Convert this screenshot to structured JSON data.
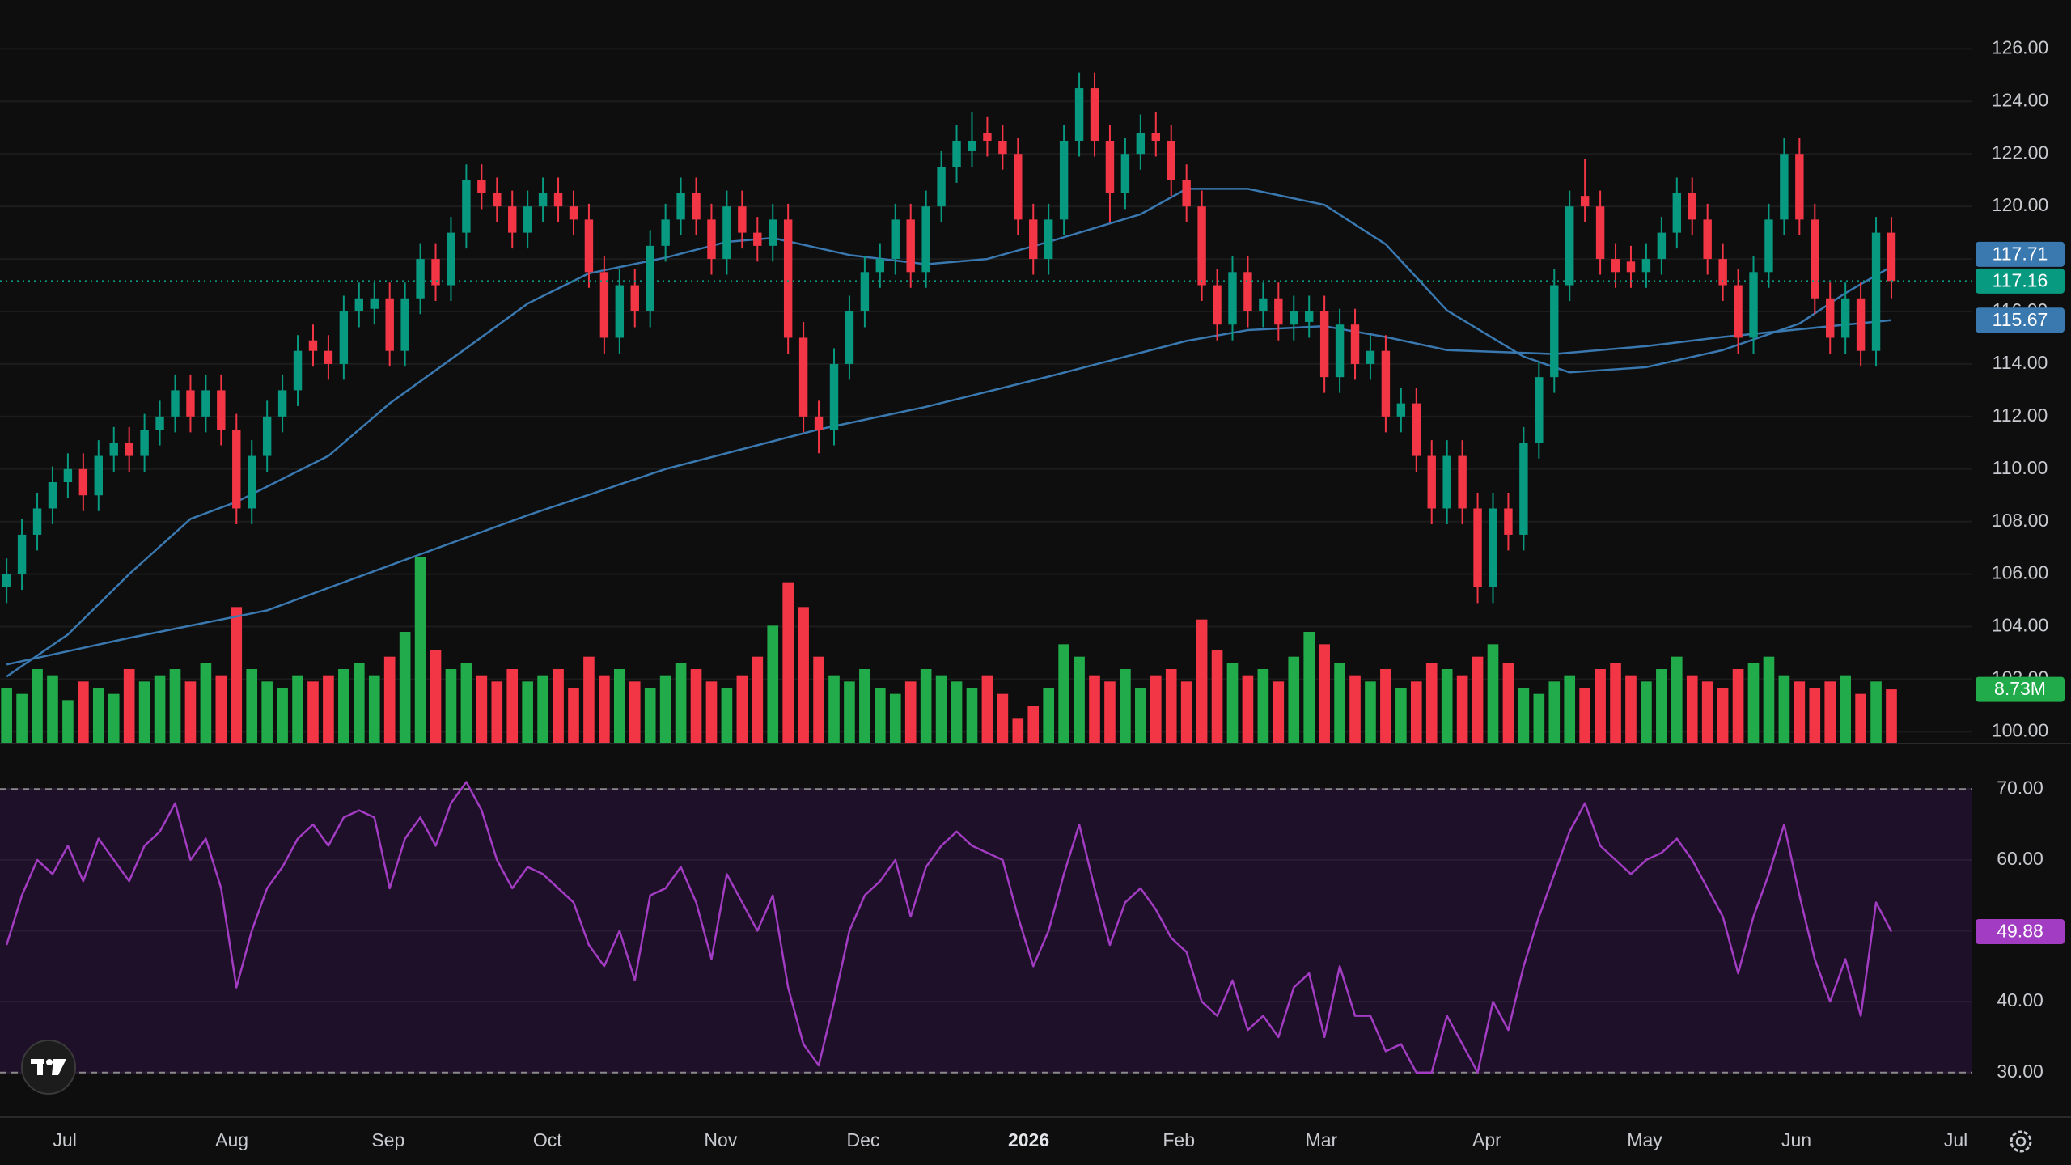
{
  "chart_data": [
    {
      "type": "candlestick",
      "open": [
        105.5,
        106,
        107.5,
        108.5,
        109.5,
        110,
        109,
        110.5,
        111,
        110.5,
        111.5,
        112,
        113,
        112,
        113,
        111.5,
        108.5,
        110.5,
        112,
        113,
        114.9,
        114.5,
        114,
        116,
        116.1,
        116.5,
        114.5,
        116.5,
        118,
        117,
        119,
        121,
        120.5,
        120,
        119,
        120,
        120.5,
        120,
        119.5,
        117.5,
        115,
        117,
        116,
        118.5,
        119.5,
        120.5,
        119.5,
        118,
        120,
        119,
        118.5,
        119.5,
        115,
        112,
        111.5,
        114,
        116,
        117.5,
        118,
        119.5,
        117.5,
        120,
        121.5,
        122.1,
        122.8,
        122.5,
        122,
        119.5,
        118,
        119.5,
        122.5,
        124.5,
        122.5,
        120.5,
        122,
        122.8,
        122.5,
        121,
        120,
        117,
        115.5,
        117.5,
        116,
        116.5,
        115.5,
        115.6,
        116,
        113.5,
        115.5,
        114,
        114.5,
        112,
        112.5,
        110.5,
        108.5,
        110.5,
        108.5,
        105.5,
        108.5,
        107.5,
        111,
        113.5,
        117,
        120.4,
        120,
        118,
        117.9,
        117.5,
        118,
        119,
        120.5,
        119.5,
        118,
        117,
        115,
        117.5,
        119.5,
        122,
        119.5,
        116.5,
        115,
        116.5,
        114.5,
        119
      ],
      "high": [
        106.6,
        108.1,
        109.1,
        110.1,
        110.6,
        110.6,
        111.1,
        111.6,
        111.6,
        112.1,
        112.6,
        113.6,
        113.6,
        113.6,
        113.6,
        112.1,
        111.1,
        112.6,
        113.6,
        115.1,
        115.5,
        115.1,
        116.6,
        117.1,
        117.1,
        117.1,
        117.1,
        118.6,
        118.6,
        119.6,
        121.6,
        121.6,
        121.1,
        120.6,
        120.6,
        121.1,
        121.1,
        120.6,
        120.1,
        118.1,
        117.6,
        117.6,
        119.1,
        120.1,
        121.1,
        121.1,
        120.1,
        120.6,
        120.6,
        119.6,
        120.1,
        120.1,
        115.6,
        112.6,
        114.6,
        116.6,
        118.1,
        118.6,
        120.1,
        120.1,
        120.6,
        122.1,
        123.1,
        123.6,
        123.4,
        123.1,
        122.6,
        120.1,
        120.1,
        123.1,
        125.1,
        125.1,
        123.1,
        122.6,
        123.5,
        123.6,
        123.1,
        121.6,
        120.6,
        117.6,
        118.1,
        118.1,
        117.1,
        117.1,
        116.6,
        116.6,
        116.6,
        116.1,
        116.1,
        115.1,
        115.1,
        113.1,
        113.1,
        111.1,
        111.1,
        111.1,
        109.1,
        109.1,
        109.1,
        111.6,
        114.1,
        117.6,
        120.6,
        121.8,
        120.6,
        118.6,
        118.5,
        118.6,
        119.6,
        121.1,
        121.1,
        120.1,
        118.6,
        117.6,
        118.1,
        120.1,
        122.6,
        122.6,
        120.1,
        117.1,
        117.1,
        117.1,
        119.6,
        119.6
      ],
      "low": [
        104.9,
        105.4,
        106.9,
        107.9,
        108.9,
        108.4,
        108.4,
        109.9,
        109.9,
        109.9,
        110.9,
        111.4,
        111.4,
        111.4,
        110.9,
        107.9,
        107.9,
        109.9,
        111.4,
        112.4,
        113.9,
        113.4,
        113.4,
        115.4,
        115.5,
        113.9,
        113.9,
        115.9,
        116.4,
        116.4,
        118.4,
        119.9,
        119.4,
        118.4,
        118.4,
        119.4,
        119.4,
        118.9,
        116.9,
        114.4,
        114.4,
        115.4,
        115.4,
        117.9,
        118.9,
        118.9,
        117.4,
        117.4,
        118.4,
        117.9,
        117.9,
        114.4,
        111.4,
        110.6,
        110.9,
        113.4,
        115.4,
        116.9,
        117.4,
        116.9,
        116.9,
        119.4,
        120.9,
        121.5,
        121.9,
        121.4,
        118.9,
        117.4,
        117.4,
        118.9,
        121.9,
        121.9,
        119.4,
        119.9,
        121.4,
        121.9,
        120.4,
        119.4,
        116.4,
        114.9,
        114.9,
        115.4,
        115.4,
        114.9,
        114.9,
        115.0,
        112.9,
        112.9,
        113.4,
        113.4,
        111.4,
        111.4,
        109.9,
        107.9,
        107.9,
        107.9,
        104.9,
        104.9,
        106.9,
        106.9,
        110.4,
        112.9,
        116.4,
        119.4,
        117.4,
        116.9,
        116.9,
        116.9,
        117.4,
        118.4,
        118.9,
        117.4,
        116.4,
        114.4,
        114.4,
        116.9,
        118.9,
        118.9,
        115.9,
        114.4,
        114.4,
        113.9,
        113.9,
        116.5
      ],
      "close": [
        106,
        107.5,
        108.5,
        109.5,
        110,
        109,
        110.5,
        111,
        110.5,
        111.5,
        112,
        113,
        112,
        113,
        111.5,
        108.5,
        110.5,
        112,
        113,
        114.5,
        114.5,
        114,
        116,
        116.5,
        116.5,
        114.5,
        116.5,
        118,
        117,
        119,
        121,
        120.5,
        120,
        119,
        120,
        120.5,
        120,
        119.5,
        117.5,
        115,
        117,
        116,
        118.5,
        119.5,
        120.5,
        119.5,
        118,
        120,
        119,
        118.5,
        119.5,
        115,
        112,
        111.5,
        114,
        116,
        117.5,
        118,
        119.5,
        117.5,
        120,
        121.5,
        122.5,
        122.5,
        122.5,
        122,
        119.5,
        118,
        119.5,
        122.5,
        124.5,
        122.5,
        120.5,
        122,
        122.8,
        122.5,
        121,
        120,
        117,
        115.5,
        117.5,
        116,
        116.5,
        115.5,
        116,
        116,
        113.5,
        115.5,
        114,
        114.5,
        112,
        112.5,
        110.5,
        108.5,
        110.5,
        108.5,
        105.5,
        108.5,
        107.5,
        111,
        113.5,
        117,
        120,
        120,
        118,
        117.5,
        117.5,
        118,
        119,
        120.5,
        119.5,
        118,
        117,
        115,
        117.5,
        119.5,
        122,
        119.5,
        116.5,
        115,
        116.5,
        114.5,
        119,
        117.16
      ],
      "close_label": "117.16",
      "up_color": "#089981",
      "down_color": "#f23645",
      "volume": {
        "values": [
          9,
          8,
          12,
          11,
          7,
          10,
          9,
          8,
          12,
          10,
          11,
          12,
          10,
          13,
          11,
          22,
          12,
          10,
          9,
          11,
          10,
          11,
          12,
          13,
          11,
          14,
          18,
          30,
          15,
          12,
          13,
          11,
          10,
          12,
          10,
          11,
          12,
          9,
          14,
          11,
          12,
          10,
          9,
          11,
          13,
          12,
          10,
          9,
          11,
          14,
          19,
          26,
          22,
          14,
          11,
          10,
          12,
          9,
          8,
          10,
          12,
          11,
          10,
          9,
          11,
          8,
          4,
          6,
          9,
          16,
          14,
          11,
          10,
          12,
          9,
          11,
          12,
          10,
          20,
          15,
          13,
          11,
          12,
          10,
          14,
          18,
          16,
          13,
          11,
          10,
          12,
          9,
          10,
          13,
          12,
          11,
          14,
          16,
          13,
          9,
          8,
          10,
          11,
          9,
          12,
          13,
          11,
          10,
          12,
          14,
          11,
          10,
          9,
          12,
          13,
          14,
          11,
          10,
          9,
          10,
          11,
          8,
          10,
          8.73
        ],
        "last_label": "8.73M",
        "up_color": "#22ab4a",
        "down_color": "#f23645"
      },
      "moving_averages": [
        {
          "color": "#3a78b0",
          "x": [
            0,
            4,
            8,
            12,
            15,
            21,
            25,
            30,
            34,
            38,
            43,
            47,
            50,
            55,
            60,
            64,
            68,
            74,
            77,
            81,
            86,
            90,
            94,
            99,
            102,
            107,
            112,
            117,
            120,
            123
          ],
          "values": [
            102.1,
            103.7,
            106.0,
            108.1,
            108.75,
            110.5,
            112.5,
            114.6,
            116.3,
            117.45,
            118.05,
            118.65,
            118.8,
            118.15,
            117.8,
            118.0,
            118.65,
            119.7,
            120.67,
            120.67,
            120.06,
            118.56,
            116.04,
            114.28,
            113.68,
            113.88,
            114.53,
            115.54,
            116.7,
            117.71
          ],
          "last_label": "117.71"
        },
        {
          "color": "#3a78b0",
          "x": [
            0,
            8,
            17,
            25,
            34,
            43,
            53,
            60,
            68,
            77,
            81,
            86,
            90,
            94,
            101,
            107,
            112,
            123
          ],
          "values": [
            102.56,
            103.57,
            104.62,
            106.33,
            108.24,
            110.0,
            111.51,
            112.37,
            113.52,
            114.88,
            115.29,
            115.44,
            115.03,
            114.53,
            114.38,
            114.68,
            115.03,
            115.67
          ],
          "last_label": "115.67"
        }
      ],
      "xlim": [
        -0.43,
        128.28
      ],
      "xticks": [
        {
          "value": 3.8,
          "label": "Jul"
        },
        {
          "value": 14.7,
          "label": "Aug"
        },
        {
          "value": 24.9,
          "label": "Sep"
        },
        {
          "value": 35.3,
          "label": "Oct"
        },
        {
          "value": 46.6,
          "label": "Nov"
        },
        {
          "value": 55.9,
          "label": "Dec"
        },
        {
          "value": 66.7,
          "label": "2026"
        },
        {
          "value": 76.5,
          "label": "Feb"
        },
        {
          "value": 85.8,
          "label": "Mar"
        },
        {
          "value": 96.6,
          "label": "Apr"
        },
        {
          "value": 106.9,
          "label": "May"
        },
        {
          "value": 116.8,
          "label": "Jun"
        },
        {
          "value": 127.2,
          "label": "Jul"
        }
      ],
      "ylim": [
        99.55,
        127.86
      ],
      "yticks": [
        {
          "value": 100,
          "label": "100.00"
        },
        {
          "value": 102,
          "label": "102.00"
        },
        {
          "value": 104,
          "label": "104.00"
        },
        {
          "value": 106,
          "label": "106.00"
        },
        {
          "value": 108,
          "label": "108.00"
        },
        {
          "value": 110,
          "label": "110.00"
        },
        {
          "value": 112,
          "label": "112.00"
        },
        {
          "value": 114,
          "label": "114.00"
        },
        {
          "value": 116,
          "label": "116.00"
        },
        {
          "value": 118,
          "label": "118.00"
        },
        {
          "value": 120,
          "label": "120.00"
        },
        {
          "value": 122,
          "label": "122.00"
        },
        {
          "value": 124,
          "label": "124.00"
        },
        {
          "value": 126,
          "label": "126.00"
        }
      ],
      "grid": true
    },
    {
      "type": "line",
      "values": [
        48,
        55,
        60,
        58,
        62,
        57,
        63,
        60,
        57,
        62,
        64,
        68,
        60,
        63,
        56,
        42,
        50,
        56,
        59,
        63,
        65,
        62,
        66,
        67,
        66,
        56,
        63,
        66,
        62,
        68,
        71,
        67,
        60,
        56,
        59,
        58,
        56,
        54,
        48,
        45,
        50,
        43,
        55,
        56,
        59,
        54,
        46,
        58,
        54,
        50,
        55,
        42,
        34,
        31,
        40,
        50,
        55,
        57,
        60,
        52,
        59,
        62,
        64,
        62,
        61,
        60,
        52,
        45,
        50,
        58,
        65,
        56,
        48,
        54,
        56,
        53,
        49,
        47,
        40,
        38,
        43,
        36,
        38,
        35,
        42,
        44,
        35,
        45,
        38,
        38,
        33,
        34,
        30,
        30,
        38,
        34,
        30,
        40,
        36,
        45,
        52,
        58,
        64,
        68,
        62,
        60,
        58,
        60,
        61,
        63,
        60,
        56,
        52,
        44,
        52,
        58,
        65,
        55,
        46,
        40,
        46,
        38,
        54,
        49.88
      ],
      "last_label": "49.88",
      "color": "#a23cc2",
      "band": [
        30,
        70
      ],
      "band_color": "#1f1029",
      "ylim": [
        23.8,
        76.2
      ],
      "yticks": [
        {
          "value": 30,
          "label": "30.00"
        },
        {
          "value": 40,
          "label": "40.00"
        },
        {
          "value": 50,
          "label": "50.00"
        },
        {
          "value": 60,
          "label": "60.00"
        },
        {
          "value": 70,
          "label": "70.00"
        }
      ],
      "grid": true
    }
  ]
}
